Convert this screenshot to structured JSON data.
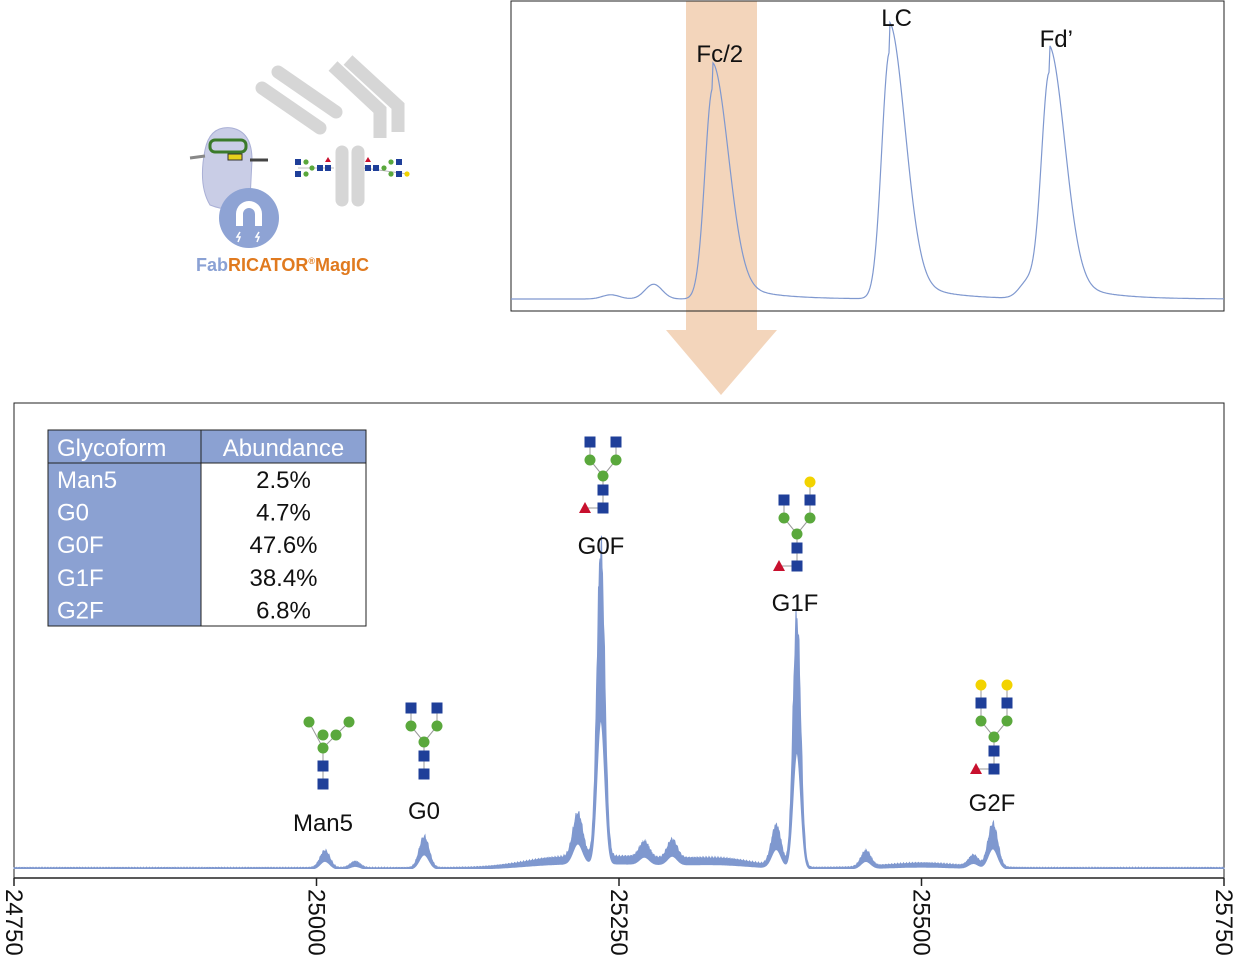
{
  "colors": {
    "trace": "#7f98cf",
    "highlight": "#f3d5bb",
    "table_header": "#8ba1d2",
    "glcnac": "#1f3f99",
    "mannose": "#5aa83c",
    "galactose": "#f2d300",
    "fucose": "#c8102e",
    "logo_fab": "#8aa1d4",
    "logo_rest": "#e07a1f"
  },
  "logo": {
    "text_fab": "Fab",
    "text_rest": "RICATOR",
    "text_reg": "®",
    "text_end": "MagIC"
  },
  "chart_data": [
    {
      "type": "line",
      "title": "",
      "xlabel": "",
      "ylabel": "",
      "note_axes": "no axes shown; relative positions",
      "highlighted_peak": "Fc/2",
      "peaks": [
        {
          "label": "",
          "x": 14,
          "height": 2
        },
        {
          "label": "",
          "x": 20,
          "height": 7
        },
        {
          "label": "Fc/2",
          "x": 28.3,
          "height": 100
        },
        {
          "label": "LC",
          "x": 53.1,
          "height": 117
        },
        {
          "label": "",
          "x": 72.5,
          "height": 8
        },
        {
          "label": "Fd’",
          "x": 75.5,
          "height": 107
        }
      ]
    },
    {
      "type": "line",
      "title": "",
      "xlabel": "",
      "ylabel": "",
      "xlim": [
        24750,
        25750
      ],
      "xticks": [
        "24750",
        "25000",
        "25250",
        "25500",
        "25750"
      ],
      "grid": false,
      "peaks": [
        {
          "label": "Man5",
          "mass": 25007,
          "intensity": 5.5
        },
        {
          "label": "",
          "mass": 25032,
          "intensity": 2
        },
        {
          "label": "G0",
          "mass": 25089,
          "intensity": 10
        },
        {
          "label": "",
          "mass": 25216,
          "intensity": 14
        },
        {
          "label": "G0F",
          "mass": 25235,
          "intensity": 100
        },
        {
          "label": "",
          "mass": 25271,
          "intensity": 5
        },
        {
          "label": "",
          "mass": 25294,
          "intensity": 6
        },
        {
          "label": "",
          "mass": 25380,
          "intensity": 13
        },
        {
          "label": "G1F",
          "mass": 25397,
          "intensity": 81
        },
        {
          "label": "",
          "mass": 25454,
          "intensity": 5
        },
        {
          "label": "",
          "mass": 25543,
          "intensity": 3.5
        },
        {
          "label": "G2F",
          "mass": 25559,
          "intensity": 14
        }
      ]
    }
  ],
  "table": {
    "headers": [
      "Glycoform",
      "Abundance"
    ],
    "rows": [
      [
        "Man5",
        "2.5%"
      ],
      [
        "G0",
        "4.7%"
      ],
      [
        "G0F",
        "47.6%"
      ],
      [
        "G1F",
        "38.4%"
      ],
      [
        "G2F",
        "6.8%"
      ]
    ]
  }
}
